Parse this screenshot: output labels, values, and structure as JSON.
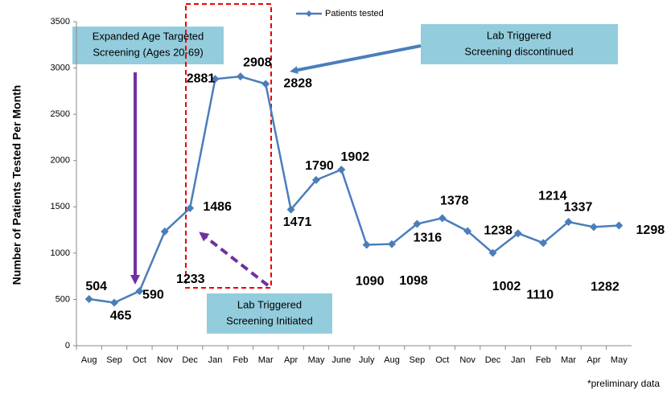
{
  "chart_data": {
    "type": "line",
    "y_label": "Number of Patients Tested Per Month",
    "categories": [
      "Aug",
      "Sep",
      "Oct",
      "Nov",
      "Dec",
      "Jan",
      "Feb",
      "Mar",
      "Apr",
      "May",
      "June",
      "July",
      "Aug",
      "Sep",
      "Oct",
      "Nov",
      "Dec",
      "Jan",
      "Feb",
      "Mar",
      "Apr",
      "May"
    ],
    "series": [
      {
        "name": "Patients tested",
        "color": "#4a7ebb",
        "values": [
          504,
          465,
          590,
          1233,
          1486,
          2881,
          2908,
          2828,
          1471,
          1790,
          1902,
          1090,
          1098,
          1316,
          1378,
          1238,
          1002,
          1214,
          1110,
          1337,
          1282,
          1298
        ]
      }
    ],
    "ylim": [
      0,
      3500
    ],
    "yticks": [
      0,
      500,
      1000,
      1500,
      2000,
      2500,
      3000,
      3500
    ],
    "legend": "top",
    "annotations": [
      {
        "lines": [
          "Expanded Age Targeted",
          "Screening (Ages 20-69)"
        ]
      },
      {
        "lines": [
          "Lab Triggered",
          "Screening discontinued"
        ]
      },
      {
        "lines": [
          "Lab Triggered",
          "Screening Initiated"
        ]
      }
    ],
    "footnote": "*preliminary data"
  }
}
